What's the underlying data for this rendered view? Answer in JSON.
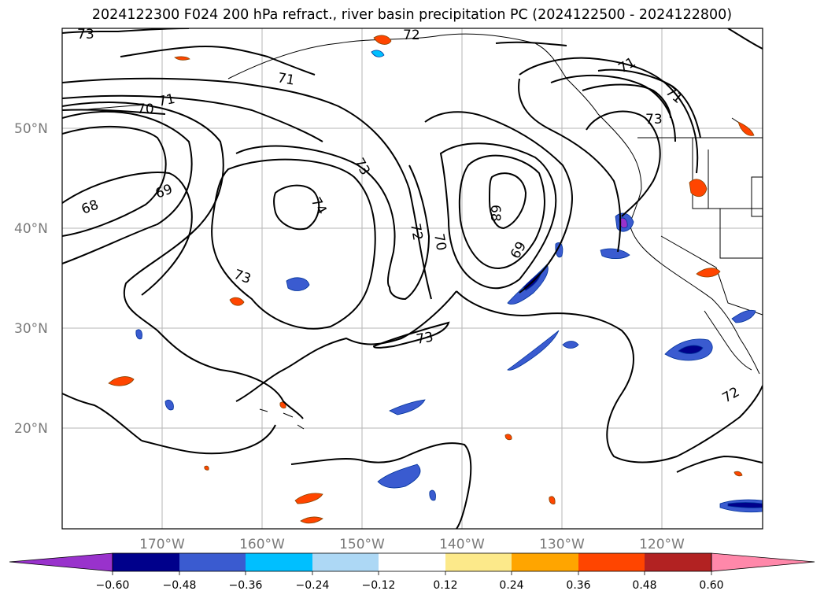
{
  "title": "2024122300 F024 200 hPa refract., river basin precipitation PC (2024122500 - 2024122800)",
  "map": {
    "lat_ticks": [
      "50°N",
      "40°N",
      "30°N",
      "20°N"
    ],
    "lon_ticks": [
      "170°W",
      "160°W",
      "150°W",
      "140°W",
      "130°W",
      "120°W"
    ],
    "contour_labels": [
      "73",
      "72",
      "71",
      "71",
      "70",
      "71",
      "73",
      "71",
      "73",
      "74",
      "69",
      "68",
      "72",
      "70",
      "68",
      "69",
      "73",
      "73",
      "72"
    ]
  },
  "colorbar": {
    "ticks": [
      "−0.60",
      "−0.48",
      "−0.36",
      "−0.24",
      "−0.12",
      "0.12",
      "0.24",
      "0.36",
      "0.48",
      "0.60"
    ],
    "colors": [
      "#9932cc",
      "#00008b",
      "#3a5bd0",
      "#00bfff",
      "#add8f5",
      "#ffffff",
      "#fce98a",
      "#ffa500",
      "#ff4500",
      "#b22222",
      "#ff88aa"
    ]
  }
}
